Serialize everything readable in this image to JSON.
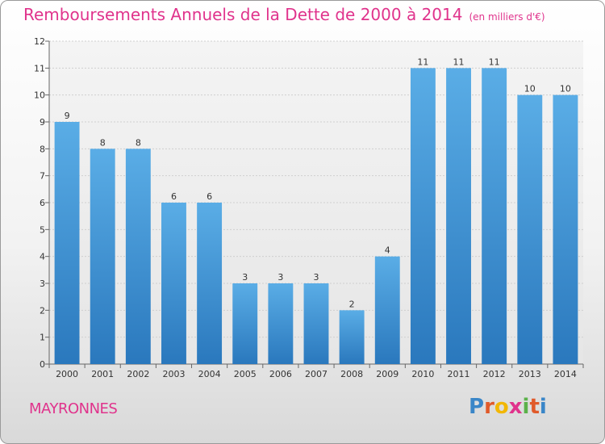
{
  "header": {
    "title": "Remboursements Annuels de la Dette de 2000 à 2014",
    "unit": "(en milliers d'€)"
  },
  "footer": {
    "commune": "MAYRONNES",
    "brand": "Proxiti"
  },
  "colors": {
    "accent": "#e0338c",
    "bar_light": "#5aade6",
    "bar_dark": "#2a7cc0"
  },
  "chart_data": {
    "type": "bar",
    "title": "Remboursements Annuels de la Dette de 2000 à 2014",
    "xlabel": "",
    "ylabel": "",
    "categories": [
      "2000",
      "2001",
      "2002",
      "2003",
      "2004",
      "2005",
      "2006",
      "2007",
      "2008",
      "2009",
      "2010",
      "2011",
      "2012",
      "2013",
      "2014"
    ],
    "values": [
      9,
      8,
      8,
      6,
      6,
      3,
      3,
      3,
      2,
      4,
      11,
      11,
      11,
      10,
      10
    ],
    "ylim": [
      0,
      12
    ],
    "yticks": [
      0,
      1,
      2,
      3,
      4,
      5,
      6,
      7,
      8,
      9,
      10,
      11,
      12
    ],
    "grid": true,
    "legend": "none"
  }
}
